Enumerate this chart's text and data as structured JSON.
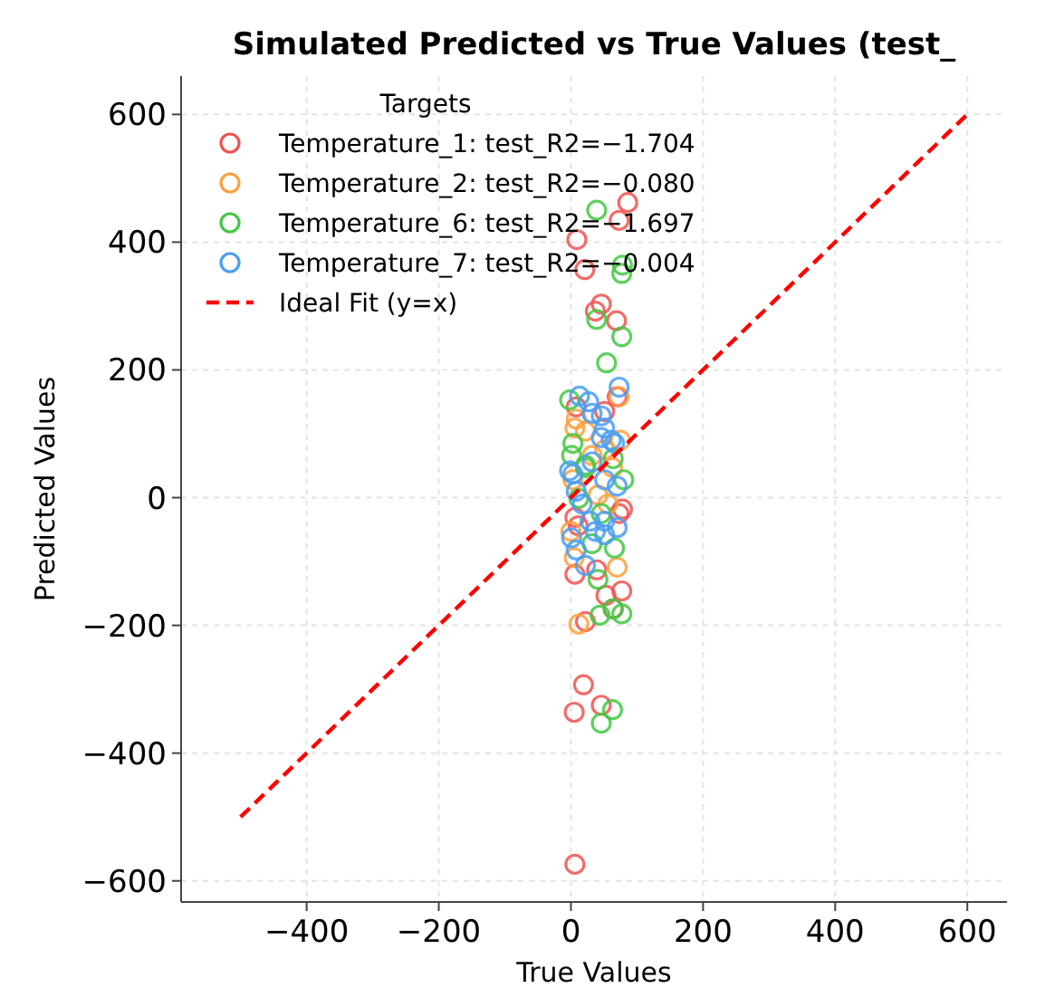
{
  "chart_data": {
    "type": "scatter",
    "title": "Simulated Predicted vs True Values (test_",
    "xlabel": "True Values",
    "ylabel": "Predicted Values",
    "legend_title": "Targets",
    "xlim": [
      -590,
      660
    ],
    "ylim": [
      -633,
      660
    ],
    "xticks": [
      -400,
      -200,
      0,
      200,
      400,
      600
    ],
    "yticks": [
      -600,
      -400,
      -200,
      0,
      200,
      400,
      600
    ],
    "grid": true,
    "legend": "top left",
    "marker": "circle",
    "series": [
      {
        "name": "Temperature_1: test_R2=−1.704",
        "color": "#ef5350",
        "x": [
          86,
          73,
          9,
          21,
          46,
          37,
          69,
          70,
          51,
          8,
          78,
          73,
          6,
          11,
          6,
          39,
          53,
          77,
          64,
          22,
          19,
          5,
          46,
          6
        ],
        "values": [
          462,
          434,
          404,
          357,
          303,
          292,
          277,
          158,
          135,
          142,
          -18,
          -25,
          -31,
          -44,
          -120,
          -113,
          -153,
          -146,
          -174,
          -194,
          -293,
          -336,
          -325,
          -574
        ]
      },
      {
        "name": "Temperature_2: test_R2=−0.080",
        "color": "#ffa040",
        "x": [
          73,
          6,
          8,
          0,
          5,
          70,
          12,
          3,
          41,
          56,
          75,
          51,
          32,
          22,
          63
        ],
        "values": [
          158,
          109,
          123,
          -53,
          -94,
          -109,
          -198,
          28,
          4,
          -10,
          90,
          75,
          66,
          104,
          47
        ]
      },
      {
        "name": "Temperature_6: test_R2=−1.697",
        "color": "#44c744",
        "x": [
          39,
          78,
          77,
          39,
          77,
          54,
          -2,
          3,
          1,
          22,
          64,
          80,
          12,
          46,
          32,
          66,
          41,
          44,
          64,
          77,
          63,
          46,
          22
        ],
        "values": [
          450,
          364,
          351,
          279,
          252,
          211,
          153,
          85,
          66,
          51,
          61,
          28,
          -1,
          -25,
          -72,
          -79,
          -128,
          -184,
          -174,
          -182,
          -332,
          -353,
          47
        ]
      },
      {
        "name": "Temperature_7: test_R2=−0.004",
        "color": "#4a9ef0",
        "x": [
          73,
          13,
          27,
          32,
          46,
          51,
          46,
          61,
          66,
          -2,
          3,
          32,
          51,
          70,
          8,
          17,
          51,
          29,
          37,
          70,
          1,
          8,
          22,
          51
        ],
        "values": [
          173,
          159,
          150,
          132,
          128,
          109,
          94,
          90,
          85,
          42,
          37,
          56,
          28,
          18,
          10,
          -10,
          -37,
          -37,
          -53,
          -47,
          -63,
          -82,
          -106,
          -58
        ]
      },
      {
        "name": "Ideal Fit (y=x)",
        "type": "line",
        "color": "#ff0000",
        "line_style": "dashed",
        "marker": "none",
        "x": [
          -500,
          600
        ],
        "values": [
          -500,
          600
        ]
      }
    ]
  }
}
